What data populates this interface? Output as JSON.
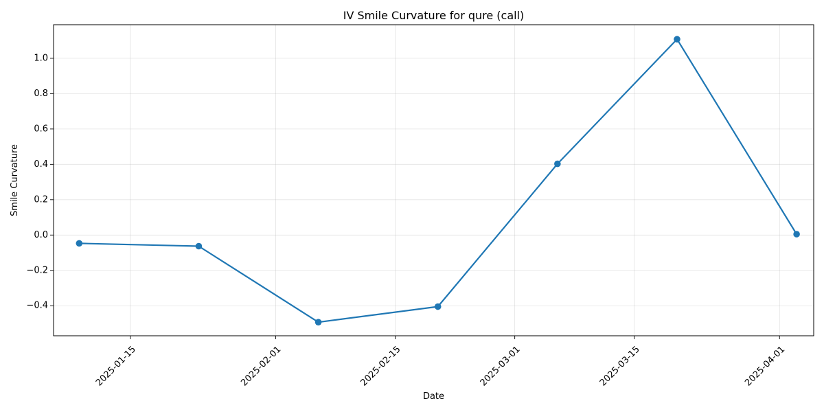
{
  "chart_data": {
    "type": "line",
    "title": "IV Smile Curvature for qure (call)",
    "xlabel": "Date",
    "ylabel": "Smile Curvature",
    "x_type": "date",
    "xlim": [
      "2025-01-06",
      "2025-04-05"
    ],
    "ylim": [
      -0.57,
      1.19
    ],
    "x_ticks": [
      "2025-01-15",
      "2025-02-01",
      "2025-02-15",
      "2025-03-01",
      "2025-03-15",
      "2025-04-01"
    ],
    "y_ticks": [
      -0.4,
      -0.2,
      0.0,
      0.2,
      0.4,
      0.6,
      0.8,
      1.0
    ],
    "y_tick_labels": [
      "−0.4",
      "−0.2",
      "0.0",
      "0.2",
      "0.4",
      "0.6",
      "0.8",
      "1.0"
    ],
    "grid": true,
    "legend": "none",
    "series": [
      {
        "color": "#1f77b4",
        "x": [
          "2025-01-09",
          "2025-01-23",
          "2025-02-06",
          "2025-02-20",
          "2025-03-06",
          "2025-03-20",
          "2025-04-03"
        ],
        "y": [
          -0.047,
          -0.063,
          -0.493,
          -0.405,
          0.403,
          1.108,
          0.005
        ]
      }
    ]
  }
}
